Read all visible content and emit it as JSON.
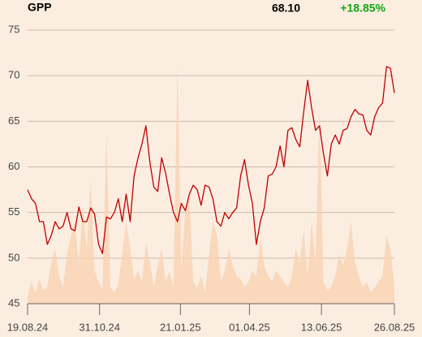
{
  "chart_data": {
    "type": "line",
    "title": "GPP",
    "last_price": "68.10",
    "change": "+18.85%",
    "change_color": "#12a412",
    "x": [
      "19.08.24",
      "23.08.24",
      "27.08.24",
      "31.08.24",
      "04.09.24",
      "08.09.24",
      "12.09.24",
      "16.09.24",
      "20.09.24",
      "24.09.24",
      "28.09.24",
      "02.10.24",
      "06.10.24",
      "10.10.24",
      "14.10.24",
      "18.10.24",
      "22.10.24",
      "26.10.24",
      "30.10.24",
      "03.11.24",
      "07.11.24",
      "11.11.24",
      "15.11.24",
      "19.11.24",
      "23.11.24",
      "27.11.24",
      "01.12.24",
      "05.12.24",
      "09.12.24",
      "13.12.24",
      "17.12.24",
      "21.12.24",
      "25.12.24",
      "29.12.24",
      "02.01.25",
      "06.01.25",
      "10.01.25",
      "14.01.25",
      "18.01.25",
      "22.01.25",
      "26.01.25",
      "30.01.25",
      "03.02.25",
      "07.02.25",
      "11.02.25",
      "15.02.25",
      "19.02.25",
      "23.02.25",
      "27.02.25",
      "03.03.25",
      "07.03.25",
      "11.03.25",
      "15.03.25",
      "19.03.25",
      "23.03.25",
      "27.03.25",
      "31.03.25",
      "04.04.25",
      "08.04.25",
      "12.04.25",
      "16.04.25",
      "20.04.25",
      "24.04.25",
      "28.04.25",
      "02.05.25",
      "06.05.25",
      "10.05.25",
      "14.05.25",
      "18.05.25",
      "22.05.25",
      "26.05.25",
      "30.05.25",
      "03.06.25",
      "07.06.25",
      "11.06.25",
      "15.06.25",
      "19.06.25",
      "23.06.25",
      "27.06.25",
      "01.07.25",
      "05.07.25",
      "09.07.25",
      "13.07.25",
      "17.07.25",
      "21.07.25",
      "25.07.25",
      "29.07.25",
      "02.08.25",
      "06.08.25",
      "10.08.25",
      "14.08.25",
      "18.08.25",
      "22.08.25",
      "26.08.25"
    ],
    "series": [
      {
        "color": "#c00000",
        "values": [
          57.5,
          56.5,
          56,
          54,
          54,
          51.5,
          52.5,
          54,
          53.2,
          53.5,
          55,
          53.2,
          53,
          55.6,
          54,
          54,
          55.5,
          54.8,
          51.5,
          50.5,
          54.5,
          54.3,
          55,
          56.5,
          54,
          57,
          54,
          59,
          61,
          62.5,
          64.5,
          60.5,
          57.8,
          57.3,
          61,
          59.3,
          57,
          55,
          54,
          56,
          55.2,
          57,
          58,
          57.5,
          55.8,
          58,
          57.8,
          56.5,
          54,
          53.5,
          55,
          54.3,
          55,
          55.5,
          59,
          60.8,
          58,
          56,
          51.5,
          54,
          55.5,
          59,
          59.2,
          60,
          62.3,
          60,
          64,
          64.3,
          63,
          62.2,
          66,
          69.5,
          66.5,
          64,
          64.5,
          61.5,
          59,
          62.5,
          63.5,
          62.5,
          64,
          64.2,
          65.5,
          66.3,
          65.8,
          65.7,
          64,
          63.5,
          65.5,
          66.5,
          67,
          71,
          70.8,
          68.1
        ]
      },
      {
        "color": "#f7d2b3",
        "axis": "y2",
        "values": [
          3,
          8,
          4,
          9,
          5,
          6,
          15,
          20,
          10,
          6,
          18,
          25,
          30,
          15,
          35,
          20,
          45,
          12,
          8,
          5,
          62,
          6,
          4,
          7,
          18,
          30,
          20,
          9,
          12,
          8,
          22,
          15,
          6,
          14,
          20,
          8,
          12,
          6,
          87,
          12,
          35,
          40,
          8,
          6,
          10,
          4,
          18,
          30,
          25,
          8,
          12,
          20,
          14,
          10,
          9,
          6,
          8,
          12,
          10,
          24,
          14,
          10,
          8,
          12,
          10,
          8,
          6,
          10,
          20,
          15,
          27,
          10,
          30,
          15,
          72,
          8,
          5,
          6,
          10,
          18,
          14,
          20,
          30,
          15,
          10,
          6,
          8,
          4,
          6,
          8,
          10,
          25,
          20,
          6
        ]
      }
    ],
    "xlim": [
      "19.08.24",
      "26.08.25"
    ],
    "xticks": [
      "19.08.24",
      "31.10.24",
      "21.01.25",
      "01.04.25",
      "13.06.25",
      "26.08.25"
    ],
    "ylim": [
      45,
      75
    ],
    "yticks": [
      45,
      50,
      55,
      60,
      65,
      70,
      75
    ],
    "y2lim": [
      0,
      100
    ],
    "grid": true
  }
}
